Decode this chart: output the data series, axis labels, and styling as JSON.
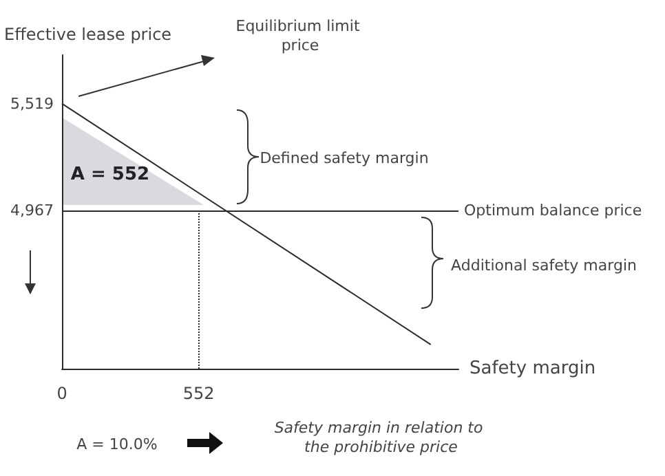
{
  "chart_data": {
    "type": "line",
    "xlabel": "Safety margin",
    "ylabel": "Effective lease price",
    "xlim": [
      0,
      1600
    ],
    "ylim": [
      4150,
      5770
    ],
    "xticks": [
      0,
      552
    ],
    "yticks": [
      {
        "value": 4967,
        "label": "4,967"
      },
      {
        "value": 5519,
        "label": "5,519"
      }
    ],
    "grid": false,
    "marker": "none",
    "series": [
      {
        "color": "#2b2b2b",
        "x": [
          0,
          1488
        ],
        "values": [
          5519,
          4275
        ]
      }
    ],
    "ref_lines": [
      {
        "axis": "y",
        "value": 4967,
        "label": "Optimum balance price",
        "color": "#2b2b2b",
        "line_style": "solid"
      },
      {
        "axis": "x",
        "value": 552,
        "label": null,
        "color": "#2b2b2b",
        "line_style": "dotted"
      }
    ],
    "annotations": [
      "Equilibrium limit price",
      "Defined safety margin",
      "Additional safety margin",
      "A = 552",
      "A = 10.0%",
      "Safety margin in relation to the prohibitive price"
    ]
  }
}
